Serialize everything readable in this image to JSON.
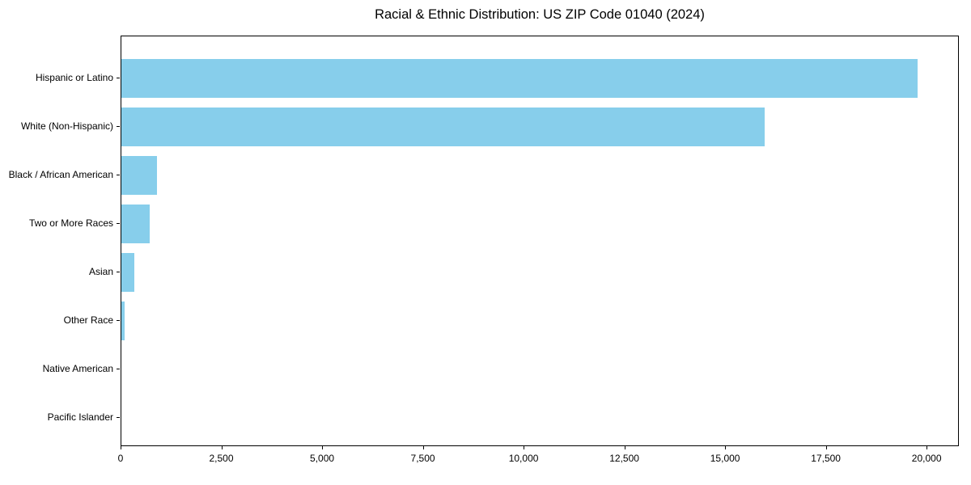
{
  "chart_data": {
    "type": "bar",
    "orientation": "horizontal",
    "title": "Racial & Ethnic Distribution: US ZIP Code 01040 (2024)",
    "categories": [
      "Hispanic or Latino",
      "White (Non-Hispanic)",
      "Black / African American",
      "Two or More Races",
      "Asian",
      "Other Race",
      "Native American",
      "Pacific Islander"
    ],
    "values": [
      19800,
      16000,
      890,
      700,
      330,
      75,
      0,
      0
    ],
    "xlabel": "",
    "ylabel": "",
    "xlim": [
      0,
      20800
    ],
    "xticks": [
      0,
      2500,
      5000,
      7500,
      10000,
      12500,
      15000,
      17500,
      20000
    ],
    "xtick_labels": [
      "0",
      "2,500",
      "5,000",
      "7,500",
      "10,000",
      "12,500",
      "15,000",
      "17,500",
      "20,000"
    ],
    "bar_color": "#87CEEB",
    "axis_color": "#000000",
    "text_color": "#000000",
    "background_color": "#ffffff",
    "grid": false
  }
}
